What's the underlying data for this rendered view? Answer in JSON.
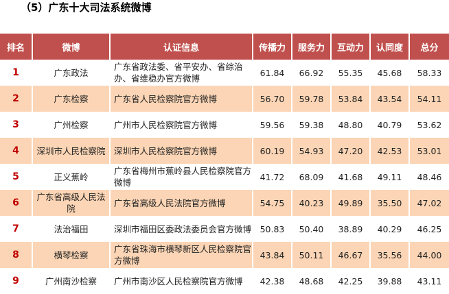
{
  "title": "（5）广东十大司法系统微博",
  "headers": [
    "排名",
    "微博",
    "认证信息",
    "传播力",
    "服务力",
    "互动力",
    "认同度",
    "总分"
  ],
  "rows": [
    [
      "1",
      "广东政法",
      "广东省政法委、省平安办、省综治办、省维稳办官方微博",
      "61.84",
      "66.92",
      "55.35",
      "45.68",
      "58.33"
    ],
    [
      "2",
      "广东检察",
      "广东省人民检察院官方微博",
      "56.70",
      "59.78",
      "53.84",
      "43.54",
      "54.11"
    ],
    [
      "3",
      "广州检察",
      "广州市人民检察院官方微博",
      "59.56",
      "59.38",
      "48.80",
      "40.79",
      "53.62"
    ],
    [
      "4",
      "深圳市人民检察院",
      "深圳市人民检察院官方微博",
      "60.19",
      "54.93",
      "47.20",
      "42.53",
      "53.01"
    ],
    [
      "5",
      "正义蕉岭",
      "广东省梅州市蕉岭县人民检察院官方微博",
      "41.72",
      "68.09",
      "41.68",
      "49.11",
      "48.46"
    ],
    [
      "6",
      "广东省高级人民法院",
      "广东省高级人民法院官方微博",
      "54.75",
      "40.23",
      "49.89",
      "35.50",
      "47.02"
    ],
    [
      "7",
      "法治福田",
      "深圳市福田区委政法委员会官方微博",
      "50.83",
      "50.40",
      "38.89",
      "40.29",
      "46.25"
    ],
    [
      "8",
      "横琴检察",
      "广东省珠海市横琴新区人民检察院官方微博",
      "43.84",
      "50.11",
      "46.67",
      "35.56",
      "44.00"
    ],
    [
      "9",
      "广州南沙检察",
      "广州市南沙区人民检察院官方微博",
      "42.38",
      "48.68",
      "42.25",
      "39.88",
      "43.11"
    ]
  ]
}
